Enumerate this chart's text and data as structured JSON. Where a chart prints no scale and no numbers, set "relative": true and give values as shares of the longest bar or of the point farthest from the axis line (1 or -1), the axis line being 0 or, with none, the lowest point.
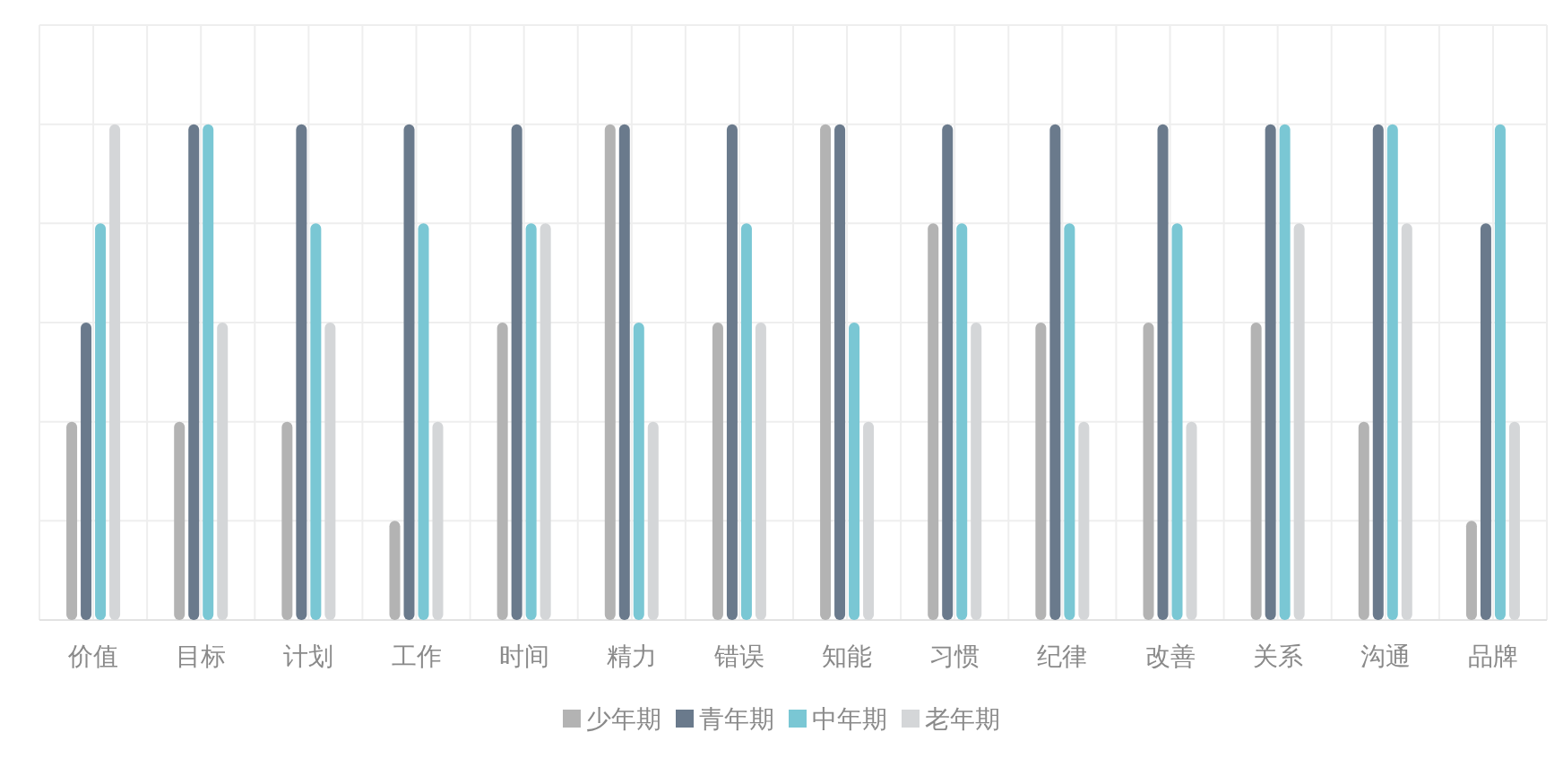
{
  "chart_data": {
    "type": "bar",
    "relative": true,
    "grid": true,
    "legend": "bottom",
    "categories": [
      "价值",
      "目标",
      "计划",
      "工作",
      "时间",
      "精力",
      "错误",
      "知能",
      "习惯",
      "纪律",
      "改善",
      "关系",
      "沟通",
      "品牌"
    ],
    "series": [
      {
        "name": "少年期",
        "color": "#b3b3b3",
        "values": [
          0.4,
          0.4,
          0.4,
          0.2,
          0.6,
          1,
          0.6,
          1,
          0.8,
          0.6,
          0.6,
          0.6,
          0.4,
          0.2
        ]
      },
      {
        "name": "青年期",
        "color": "#6a7a8c",
        "values": [
          0.6,
          1,
          1,
          1,
          1,
          1,
          1,
          1,
          1,
          1,
          1,
          1,
          1,
          0.8
        ]
      },
      {
        "name": "中年期",
        "color": "#7ac7d4",
        "values": [
          0.8,
          1,
          0.8,
          0.8,
          0.8,
          0.6,
          0.8,
          0.6,
          0.8,
          0.8,
          0.8,
          1,
          1,
          1
        ]
      },
      {
        "name": "老年期",
        "color": "#d4d6d8",
        "values": [
          1,
          0.6,
          0.6,
          0.4,
          0.8,
          0.4,
          0.6,
          0.4,
          0.6,
          0.4,
          0.4,
          0.8,
          0.8,
          0.4
        ]
      }
    ]
  }
}
